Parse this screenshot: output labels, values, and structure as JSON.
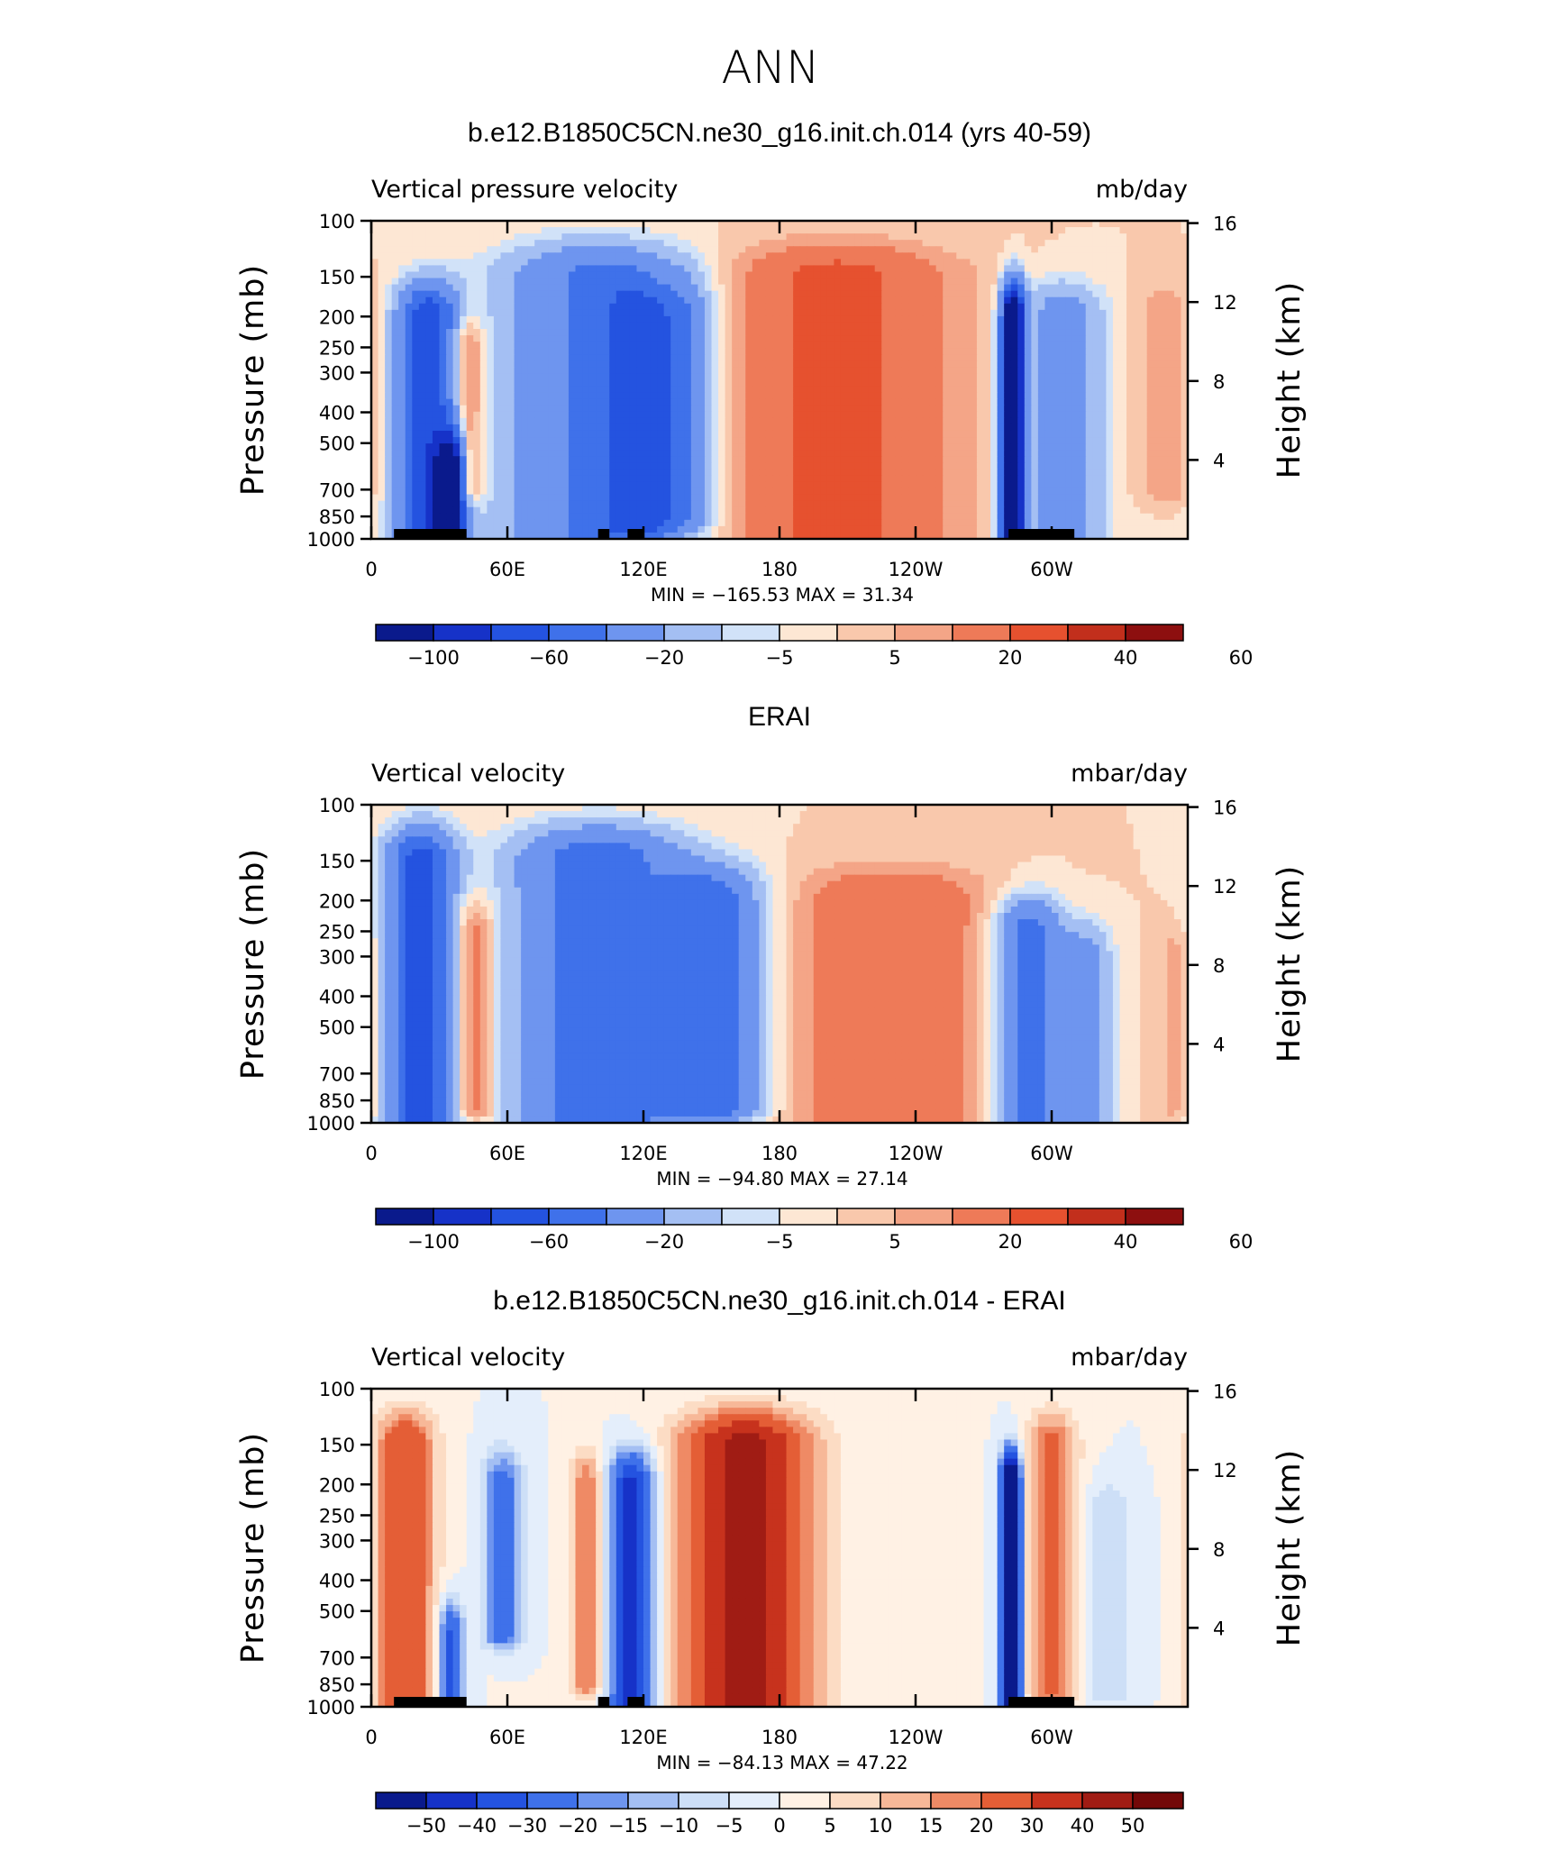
{
  "figure": {
    "title": "ANN"
  },
  "chart_data": [
    {
      "type": "heatmap",
      "title": "b.e12.B1850C5CN.ne30_g16.init.ch.014 (yrs 40-59)",
      "left_label": "Vertical pressure velocity",
      "right_label": "mb/day",
      "xlabel": "",
      "ylabel": "Pressure (mb)",
      "y2label": "Height (km)",
      "x_ticks": [
        "0",
        "60E",
        "120E",
        "180",
        "120W",
        "60W"
      ],
      "y_ticks": [
        "100",
        "150",
        "200",
        "250",
        "300",
        "400",
        "500",
        "700",
        "850",
        "1000"
      ],
      "y2_ticks": [
        "16",
        "12",
        "8",
        "4"
      ],
      "min_max": "MIN = −165.53   MAX =   31.34",
      "colorbar_labels": [
        "−100",
        "−60",
        "−20",
        "−5",
        "5",
        "20",
        "40",
        "60"
      ],
      "fields": [
        {
          "sign": -1,
          "lon": 25,
          "width": 9,
          "p_top": 200,
          "p_bot": 1000,
          "amp": 75
        },
        {
          "sign": -1,
          "lon": 35,
          "width": 4,
          "p_top": 600,
          "p_bot": 1000,
          "amp": 120
        },
        {
          "sign": 1,
          "lon": 42,
          "width": 5,
          "p_top": 250,
          "p_bot": 700,
          "amp": 25
        },
        {
          "sign": -1,
          "lon": 100,
          "width": 28,
          "p_top": 150,
          "p_bot": 1000,
          "amp": 45
        },
        {
          "sign": -1,
          "lon": 118,
          "width": 10,
          "p_top": 200,
          "p_bot": 900,
          "amp": 40
        },
        {
          "sign": -1,
          "lon": 138,
          "width": 8,
          "p_top": 200,
          "p_bot": 850,
          "amp": 30
        },
        {
          "sign": 1,
          "lon": 205,
          "width": 35,
          "p_top": 150,
          "p_bot": 1000,
          "amp": 24
        },
        {
          "sign": -1,
          "lon": 283,
          "width": 3.5,
          "p_top": 200,
          "p_bot": 1000,
          "amp": 140
        },
        {
          "sign": -1,
          "lon": 305,
          "width": 12,
          "p_top": 200,
          "p_bot": 1000,
          "amp": 30
        },
        {
          "sign": 1,
          "lon": 350,
          "width": 8,
          "p_top": 200,
          "p_bot": 700,
          "amp": 10
        }
      ],
      "land": [
        {
          "from": 10,
          "to": 42
        },
        {
          "from": 100,
          "to": 105
        },
        {
          "from": 113,
          "to": 120
        },
        {
          "from": 281,
          "to": 310
        }
      ]
    },
    {
      "type": "heatmap",
      "title": "ERAI",
      "left_label": "Vertical velocity",
      "right_label": "mbar/day",
      "xlabel": "",
      "ylabel": "Pressure (mb)",
      "y2label": "Height (km)",
      "x_ticks": [
        "0",
        "60E",
        "120E",
        "180",
        "120W",
        "60W"
      ],
      "y_ticks": [
        "100",
        "150",
        "200",
        "250",
        "300",
        "400",
        "500",
        "700",
        "850",
        "1000"
      ],
      "y2_ticks": [
        "16",
        "12",
        "8",
        "4"
      ],
      "min_max": "MIN = −94.80   MAX =   27.14",
      "colorbar_labels": [
        "−100",
        "−60",
        "−20",
        "−5",
        "5",
        "20",
        "40",
        "60"
      ],
      "fields": [
        {
          "sign": -1,
          "lon": 22,
          "width": 10,
          "p_top": 150,
          "p_bot": 1000,
          "amp": 70
        },
        {
          "sign": 1,
          "lon": 45,
          "width": 7,
          "p_top": 250,
          "p_bot": 900,
          "amp": 20
        },
        {
          "sign": -1,
          "lon": 100,
          "width": 25,
          "p_top": 150,
          "p_bot": 1000,
          "amp": 55
        },
        {
          "sign": -1,
          "lon": 150,
          "width": 15,
          "p_top": 200,
          "p_bot": 900,
          "amp": 50
        },
        {
          "sign": 1,
          "lon": 230,
          "width": 30,
          "p_top": 200,
          "p_bot": 1000,
          "amp": 20
        },
        {
          "sign": -1,
          "lon": 290,
          "width": 10,
          "p_top": 250,
          "p_bot": 1000,
          "amp": 50
        },
        {
          "sign": -1,
          "lon": 315,
          "width": 8,
          "p_top": 300,
          "p_bot": 1000,
          "amp": 25
        },
        {
          "sign": 1,
          "lon": 355,
          "width": 6,
          "p_top": 300,
          "p_bot": 900,
          "amp": 8
        }
      ],
      "land": []
    },
    {
      "type": "heatmap",
      "title": "b.e12.B1850C5CN.ne30_g16.init.ch.014 - ERAI",
      "left_label": "Vertical velocity",
      "right_label": "mbar/day",
      "xlabel": "",
      "ylabel": "Pressure (mb)",
      "y2label": "Height (km)",
      "x_ticks": [
        "0",
        "60E",
        "120E",
        "180",
        "120W",
        "60W"
      ],
      "y_ticks": [
        "100",
        "150",
        "200",
        "250",
        "300",
        "400",
        "500",
        "700",
        "850",
        "1000"
      ],
      "y2_ticks": [
        "16",
        "12",
        "8",
        "4"
      ],
      "min_max": "MIN = −84.13   MAX =   47.22",
      "colorbar_labels": [
        "−50",
        "−40",
        "−30",
        "−20",
        "−15",
        "−10",
        "−5",
        "0",
        "5",
        "10",
        "15",
        "20",
        "30",
        "40",
        "50"
      ],
      "fields": [
        {
          "sign": 1,
          "lon": 15,
          "width": 9,
          "p_top": 150,
          "p_bot": 1000,
          "amp": 30
        },
        {
          "sign": -1,
          "lon": 35,
          "width": 4,
          "p_top": 600,
          "p_bot": 1000,
          "amp": 35
        },
        {
          "sign": -1,
          "lon": 58,
          "width": 6,
          "p_top": 200,
          "p_bot": 600,
          "amp": 25
        },
        {
          "sign": 1,
          "lon": 95,
          "width": 5,
          "p_top": 200,
          "p_bot": 850,
          "amp": 20
        },
        {
          "sign": -1,
          "lon": 115,
          "width": 7,
          "p_top": 200,
          "p_bot": 1000,
          "amp": 45
        },
        {
          "sign": 1,
          "lon": 165,
          "width": 20,
          "p_top": 150,
          "p_bot": 1000,
          "amp": 45
        },
        {
          "sign": -1,
          "lon": 282,
          "width": 3,
          "p_top": 200,
          "p_bot": 1000,
          "amp": 80
        },
        {
          "sign": 1,
          "lon": 300,
          "width": 8,
          "p_top": 150,
          "p_bot": 900,
          "amp": 22
        },
        {
          "sign": -1,
          "lon": 325,
          "width": 8,
          "p_top": 250,
          "p_bot": 900,
          "amp": 10
        }
      ],
      "land": [
        {
          "from": 10,
          "to": 42
        },
        {
          "from": 100,
          "to": 105
        },
        {
          "from": 113,
          "to": 120
        },
        {
          "from": 281,
          "to": 310
        }
      ]
    }
  ],
  "palettes": {
    "standard": [
      "#0a1a8c",
      "#1632c8",
      "#2453e0",
      "#3f71ea",
      "#6e95ef",
      "#a4bff3",
      "#d1e2f8",
      "#fde7d4",
      "#f9c8ac",
      "#f4a587",
      "#ee7a58",
      "#e6512f",
      "#c22f1c",
      "#8d0f0f"
    ],
    "difference": [
      "#0a1a8c",
      "#1632c8",
      "#2453e0",
      "#3f71ea",
      "#6e95ef",
      "#a4bff3",
      "#cddff7",
      "#e4eefb",
      "#fff1e4",
      "#fcdcc4",
      "#f7b898",
      "#ef8a65",
      "#e45e36",
      "#c7321d",
      "#a01c14",
      "#730808"
    ]
  }
}
